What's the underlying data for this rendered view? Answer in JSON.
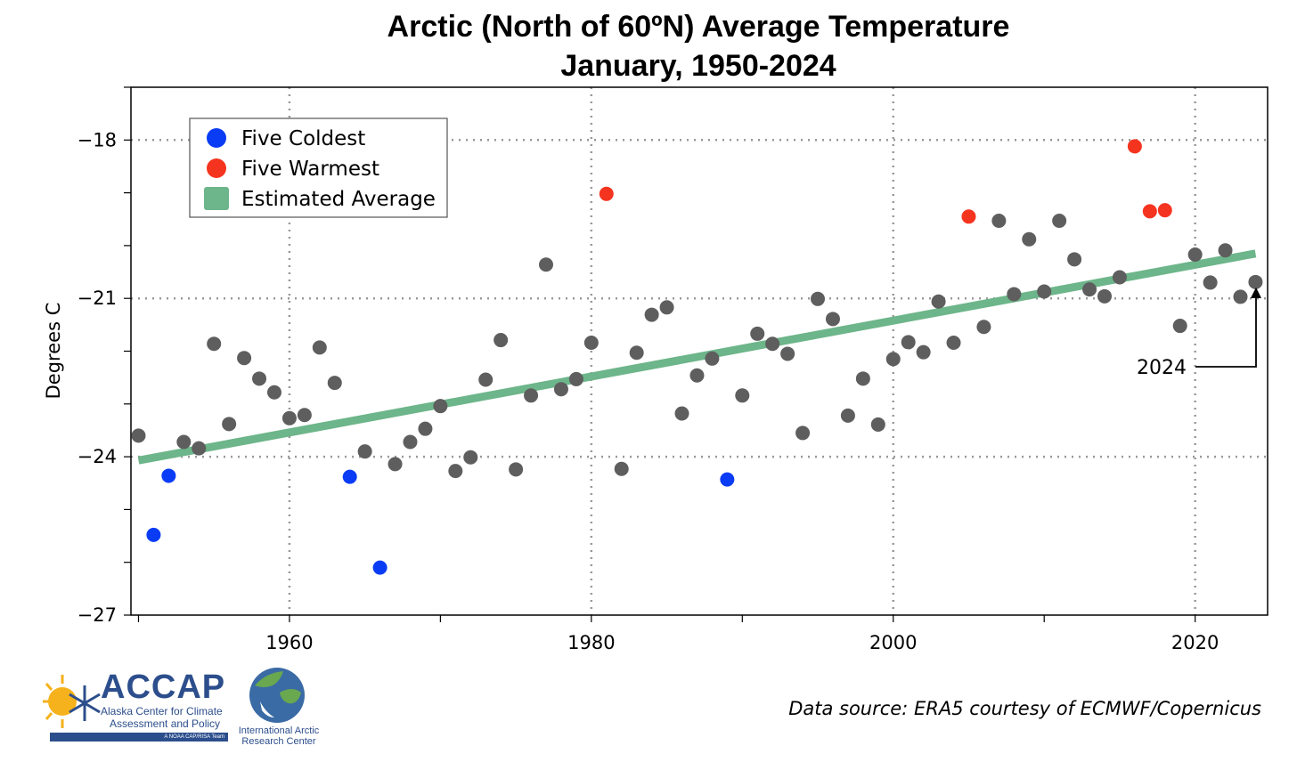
{
  "chart_data": {
    "type": "scatter",
    "title": "Arctic (North of 60ºN) Average Temperature",
    "subtitle": "January, 1950-2024",
    "ylabel": "Degrees C",
    "xlabel": "",
    "xlim": [
      1950,
      2024
    ],
    "ylim": [
      -27,
      -17
    ],
    "x_ticks": [
      1960,
      1980,
      2000,
      2020
    ],
    "y_ticks": [
      -18,
      -21,
      -24,
      -27
    ],
    "grid": true,
    "legend_position": "top-left",
    "legend": [
      {
        "label": "Five Coldest",
        "color": "#0a3cf5",
        "marker": "circle"
      },
      {
        "label": "Five Warmest",
        "color": "#f5341f",
        "marker": "circle"
      },
      {
        "label": "Estimated Average",
        "color": "#6db58a",
        "marker": "square"
      }
    ],
    "series": [
      {
        "name": "Five Coldest",
        "color": "#0a3cf5",
        "x": [
          1951,
          1952,
          1964,
          1966,
          1989
        ],
        "y": [
          -25.48,
          -24.36,
          -24.38,
          -26.1,
          -24.43
        ]
      },
      {
        "name": "Five Warmest",
        "color": "#f5341f",
        "x": [
          1981,
          2005,
          2016,
          2017,
          2018
        ],
        "y": [
          -19.02,
          -19.45,
          -18.12,
          -19.35,
          -19.33
        ]
      },
      {
        "name": "",
        "color": "#5e5e5e",
        "x": [
          1950,
          1953,
          1954,
          1955,
          1956,
          1957,
          1958,
          1959,
          1960,
          1961,
          1962,
          1963,
          1965,
          1967,
          1968,
          1969,
          1970,
          1971,
          1972,
          1973,
          1974,
          1975,
          1976,
          1977,
          1978,
          1979,
          1980,
          1982,
          1983,
          1984,
          1985,
          1986,
          1987,
          1988,
          1990,
          1991,
          1992,
          1993,
          1994,
          1995,
          1996,
          1997,
          1998,
          1999,
          2000,
          2001,
          2002,
          2003,
          2004,
          2006,
          2007,
          2008,
          2009,
          2010,
          2011,
          2012,
          2013,
          2014,
          2015,
          2019,
          2020,
          2021,
          2022,
          2023,
          2024
        ],
        "y": [
          -23.6,
          -23.72,
          -23.84,
          -21.86,
          -23.38,
          -22.13,
          -22.52,
          -22.78,
          -23.27,
          -23.21,
          -21.93,
          -22.6,
          -23.9,
          -24.14,
          -23.72,
          -23.47,
          -23.04,
          -24.27,
          -24.01,
          -22.54,
          -21.79,
          -24.24,
          -22.84,
          -20.36,
          -22.72,
          -22.53,
          -21.84,
          -24.23,
          -22.03,
          -21.31,
          -21.17,
          -23.18,
          -22.46,
          -22.14,
          -22.84,
          -21.67,
          -21.86,
          -22.05,
          -23.55,
          -21.01,
          -21.39,
          -23.22,
          -22.52,
          -23.39,
          -22.15,
          -21.83,
          -22.02,
          -21.06,
          -21.84,
          -21.54,
          -19.53,
          -20.92,
          -19.88,
          -20.87,
          -19.53,
          -20.26,
          -20.83,
          -20.96,
          -20.6,
          -21.52,
          -20.17,
          -20.7,
          -20.09,
          -20.97,
          -20.69
        ]
      },
      {
        "name": "Estimated Average",
        "color": "#6db58a",
        "type": "line",
        "x": [
          1950,
          2024
        ],
        "y": [
          -24.07,
          -20.15
        ]
      }
    ],
    "annotations": [
      {
        "text": "2024",
        "points_to": {
          "x": 2024,
          "y": -20.69
        }
      }
    ]
  },
  "footer": {
    "data_source": "Data source: ERA5 courtesy of ECMWF/Copernicus",
    "logo_name": "ACCAP",
    "logo_sub1": "Alaska Center for Climate",
    "logo_sub2": "Assessment and Policy",
    "logo_bar": "A NOAA CAP/RISA Team",
    "iarc_name": "International Arctic Research Center"
  }
}
